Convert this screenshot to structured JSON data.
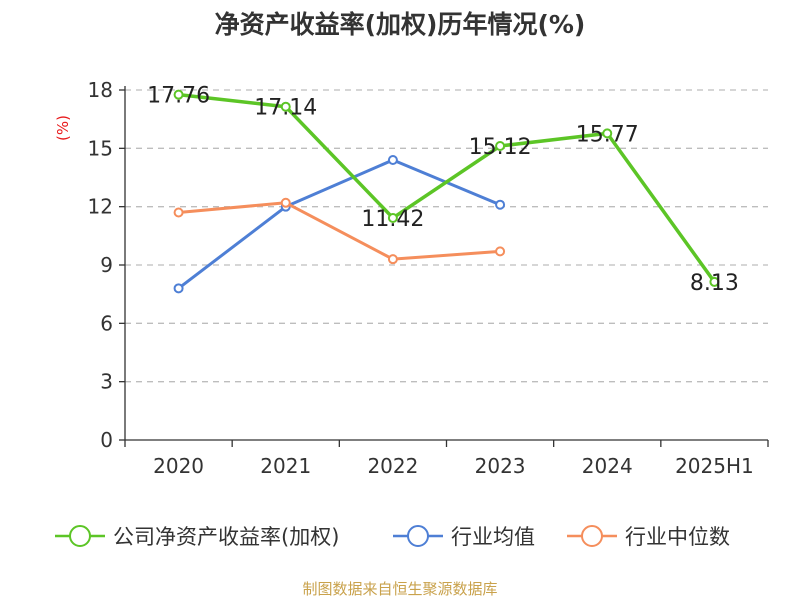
{
  "chart_data": {
    "type": "line",
    "title": "净资产收益率(加权)历年情况(%)",
    "ylabel": "(%)",
    "categories": [
      "2020",
      "2021",
      "2022",
      "2023",
      "2024",
      "2025H1"
    ],
    "ylim": [
      0,
      18
    ],
    "yticks": [
      0,
      3,
      6,
      9,
      12,
      15,
      18
    ],
    "grid": true,
    "legend_position": "bottom",
    "series": [
      {
        "name": "公司净资产收益率(加权)",
        "color": "#5cc526",
        "values": [
          17.76,
          17.14,
          11.42,
          15.12,
          15.77,
          8.13
        ],
        "labels": [
          "17.76",
          "17.14",
          "11.42",
          "15.12",
          "15.77",
          "8.13"
        ]
      },
      {
        "name": "行业均值",
        "color": "#4e7fd5",
        "values": [
          7.8,
          12.0,
          14.4,
          12.1,
          null,
          null
        ]
      },
      {
        "name": "行业中位数",
        "color": "#f58e5c",
        "values": [
          11.7,
          12.2,
          9.3,
          9.7,
          null,
          null
        ]
      }
    ]
  },
  "source": "制图数据来自恒生聚源数据库"
}
